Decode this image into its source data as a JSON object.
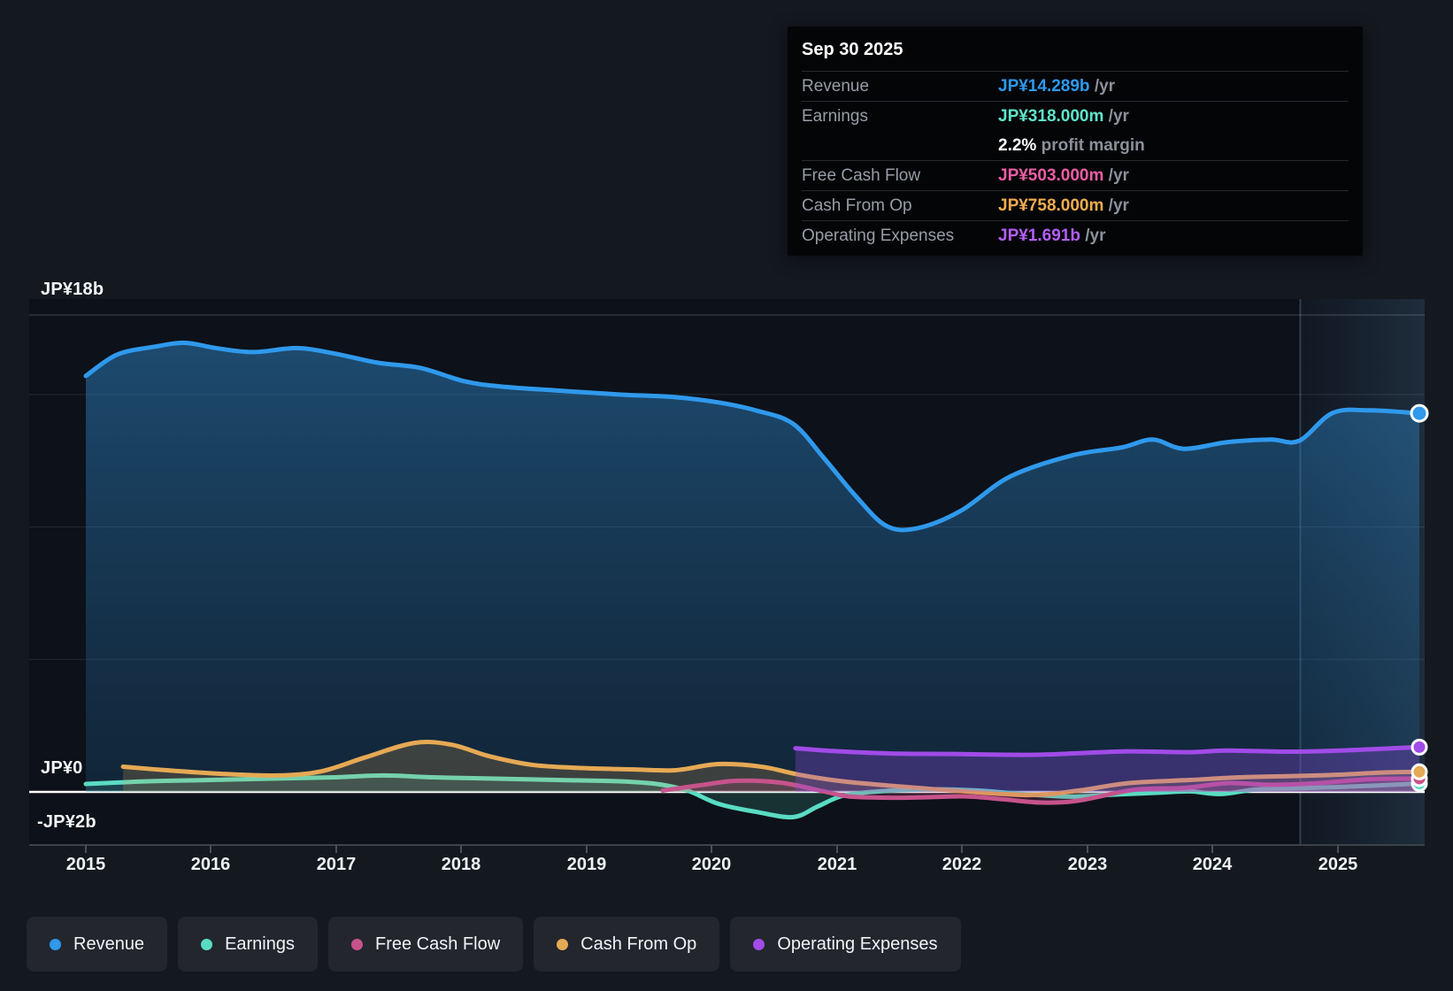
{
  "tooltip": {
    "date": "Sep 30 2025",
    "rows": [
      {
        "label": "Revenue",
        "value": "JP¥14.289b",
        "suffix": "/yr",
        "color": "#2b9af0"
      },
      {
        "label": "Earnings",
        "value": "JP¥318.000m",
        "suffix": "/yr",
        "color": "#5fe6cb",
        "margin_value": "2.2%",
        "margin_text": "profit margin"
      },
      {
        "label": "Free Cash Flow",
        "value": "JP¥503.000m",
        "suffix": "/yr",
        "color": "#ee5da6"
      },
      {
        "label": "Cash From Op",
        "value": "JP¥758.000m",
        "suffix": "/yr",
        "color": "#f2ad4e"
      },
      {
        "label": "Operating Expenses",
        "value": "JP¥1.691b",
        "suffix": "/yr",
        "color": "#b35ef8"
      }
    ]
  },
  "y_axis": {
    "top": "JP¥18b",
    "zero": "JP¥0",
    "bottom": "-JP¥2b"
  },
  "x_axis": {
    "years": [
      "2015",
      "2016",
      "2017",
      "2018",
      "2019",
      "2020",
      "2021",
      "2022",
      "2023",
      "2024",
      "2025"
    ]
  },
  "legend": [
    {
      "label": "Revenue",
      "color": "#2f99ec"
    },
    {
      "label": "Earnings",
      "color": "#59dcc3"
    },
    {
      "label": "Free Cash Flow",
      "color": "#c6538c"
    },
    {
      "label": "Cash From Op",
      "color": "#e6a954"
    },
    {
      "label": "Operating Expenses",
      "color": "#a14be8"
    }
  ],
  "chart_data": {
    "type": "area",
    "title": "Financial history: revenue, earnings and cash flows",
    "x_unit": "year",
    "y_unit": "JP¥ billions",
    "ylim": [
      -2,
      18
    ],
    "gridline_values": [
      18,
      15,
      10,
      5,
      0,
      -2
    ],
    "highlight_band_years": [
      2024.79,
      2025.75
    ],
    "legend_position": "bottom",
    "series": [
      {
        "name": "Revenue",
        "color": "#2f99ec",
        "points": [
          [
            2015,
            15.7
          ],
          [
            2015.25,
            16.5
          ],
          [
            2015.55,
            16.8
          ],
          [
            2015.8,
            16.95
          ],
          [
            2016.05,
            16.75
          ],
          [
            2016.35,
            16.6
          ],
          [
            2016.7,
            16.75
          ],
          [
            2017,
            16.55
          ],
          [
            2017.35,
            16.2
          ],
          [
            2017.7,
            16.0
          ],
          [
            2018.05,
            15.5
          ],
          [
            2018.35,
            15.3
          ],
          [
            2018.8,
            15.15
          ],
          [
            2019.3,
            15.0
          ],
          [
            2019.75,
            14.9
          ],
          [
            2020.1,
            14.7
          ],
          [
            2020.4,
            14.4
          ],
          [
            2020.7,
            13.9
          ],
          [
            2020.95,
            12.6
          ],
          [
            2021.2,
            11.2
          ],
          [
            2021.45,
            10.05
          ],
          [
            2021.7,
            9.95
          ],
          [
            2022.05,
            10.6
          ],
          [
            2022.45,
            11.9
          ],
          [
            2022.95,
            12.7
          ],
          [
            2023.35,
            13.0
          ],
          [
            2023.6,
            13.3
          ],
          [
            2023.85,
            12.95
          ],
          [
            2024.2,
            13.2
          ],
          [
            2024.55,
            13.3
          ],
          [
            2024.78,
            13.25
          ],
          [
            2025.05,
            14.3
          ],
          [
            2025.35,
            14.4
          ],
          [
            2025.75,
            14.289
          ]
        ]
      },
      {
        "name": "Earnings",
        "color": "#59dcc3",
        "points": [
          [
            2015,
            0.3
          ],
          [
            2015.5,
            0.4
          ],
          [
            2016,
            0.45
          ],
          [
            2016.5,
            0.5
          ],
          [
            2017,
            0.55
          ],
          [
            2017.4,
            0.62
          ],
          [
            2017.8,
            0.55
          ],
          [
            2018.3,
            0.5
          ],
          [
            2018.8,
            0.45
          ],
          [
            2019.3,
            0.4
          ],
          [
            2019.6,
            0.3
          ],
          [
            2019.85,
            0.05
          ],
          [
            2020.1,
            -0.45
          ],
          [
            2020.4,
            -0.75
          ],
          [
            2020.7,
            -0.95
          ],
          [
            2020.9,
            -0.55
          ],
          [
            2021.1,
            -0.15
          ],
          [
            2021.4,
            0.02
          ],
          [
            2021.8,
            0.1
          ],
          [
            2022.2,
            0.05
          ],
          [
            2022.6,
            -0.1
          ],
          [
            2022.95,
            -0.18
          ],
          [
            2023.3,
            -0.1
          ],
          [
            2023.65,
            -0.03
          ],
          [
            2023.9,
            0.02
          ],
          [
            2024.15,
            -0.08
          ],
          [
            2024.45,
            0.1
          ],
          [
            2024.85,
            0.15
          ],
          [
            2025.3,
            0.22
          ],
          [
            2025.75,
            0.318
          ]
        ]
      },
      {
        "name": "Free Cash Flow",
        "color": "#c6538c",
        "points": [
          [
            2019.65,
            0.05
          ],
          [
            2019.95,
            0.25
          ],
          [
            2020.25,
            0.42
          ],
          [
            2020.6,
            0.35
          ],
          [
            2020.95,
            0.02
          ],
          [
            2021.15,
            -0.17
          ],
          [
            2021.5,
            -0.22
          ],
          [
            2021.8,
            -0.2
          ],
          [
            2022.1,
            -0.17
          ],
          [
            2022.4,
            -0.28
          ],
          [
            2022.7,
            -0.4
          ],
          [
            2023.0,
            -0.33
          ],
          [
            2023.45,
            0.08
          ],
          [
            2023.85,
            0.15
          ],
          [
            2024.2,
            0.33
          ],
          [
            2024.55,
            0.27
          ],
          [
            2024.9,
            0.32
          ],
          [
            2025.35,
            0.48
          ],
          [
            2025.75,
            0.503
          ]
        ]
      },
      {
        "name": "Cash From Op",
        "color": "#e6a954",
        "points": [
          [
            2015.3,
            0.95
          ],
          [
            2015.7,
            0.8
          ],
          [
            2016.1,
            0.68
          ],
          [
            2016.55,
            0.62
          ],
          [
            2016.9,
            0.78
          ],
          [
            2017.25,
            1.3
          ],
          [
            2017.65,
            1.85
          ],
          [
            2017.95,
            1.78
          ],
          [
            2018.25,
            1.35
          ],
          [
            2018.6,
            1.02
          ],
          [
            2019.0,
            0.9
          ],
          [
            2019.4,
            0.85
          ],
          [
            2019.75,
            0.82
          ],
          [
            2020.1,
            1.05
          ],
          [
            2020.45,
            0.95
          ],
          [
            2020.75,
            0.65
          ],
          [
            2021.1,
            0.4
          ],
          [
            2021.5,
            0.23
          ],
          [
            2022.0,
            0.05
          ],
          [
            2022.6,
            -0.12
          ],
          [
            2023.0,
            0.05
          ],
          [
            2023.4,
            0.33
          ],
          [
            2023.9,
            0.45
          ],
          [
            2024.3,
            0.55
          ],
          [
            2024.75,
            0.6
          ],
          [
            2025.1,
            0.65
          ],
          [
            2025.45,
            0.73
          ],
          [
            2025.75,
            0.758
          ]
        ]
      },
      {
        "name": "Operating Expenses",
        "color": "#a14be8",
        "points": [
          [
            2020.72,
            1.65
          ],
          [
            2021.0,
            1.55
          ],
          [
            2021.5,
            1.45
          ],
          [
            2022.0,
            1.43
          ],
          [
            2022.6,
            1.4
          ],
          [
            2023.0,
            1.46
          ],
          [
            2023.4,
            1.53
          ],
          [
            2023.9,
            1.5
          ],
          [
            2024.2,
            1.56
          ],
          [
            2024.7,
            1.52
          ],
          [
            2025.1,
            1.56
          ],
          [
            2025.45,
            1.63
          ],
          [
            2025.75,
            1.691
          ]
        ]
      }
    ]
  }
}
